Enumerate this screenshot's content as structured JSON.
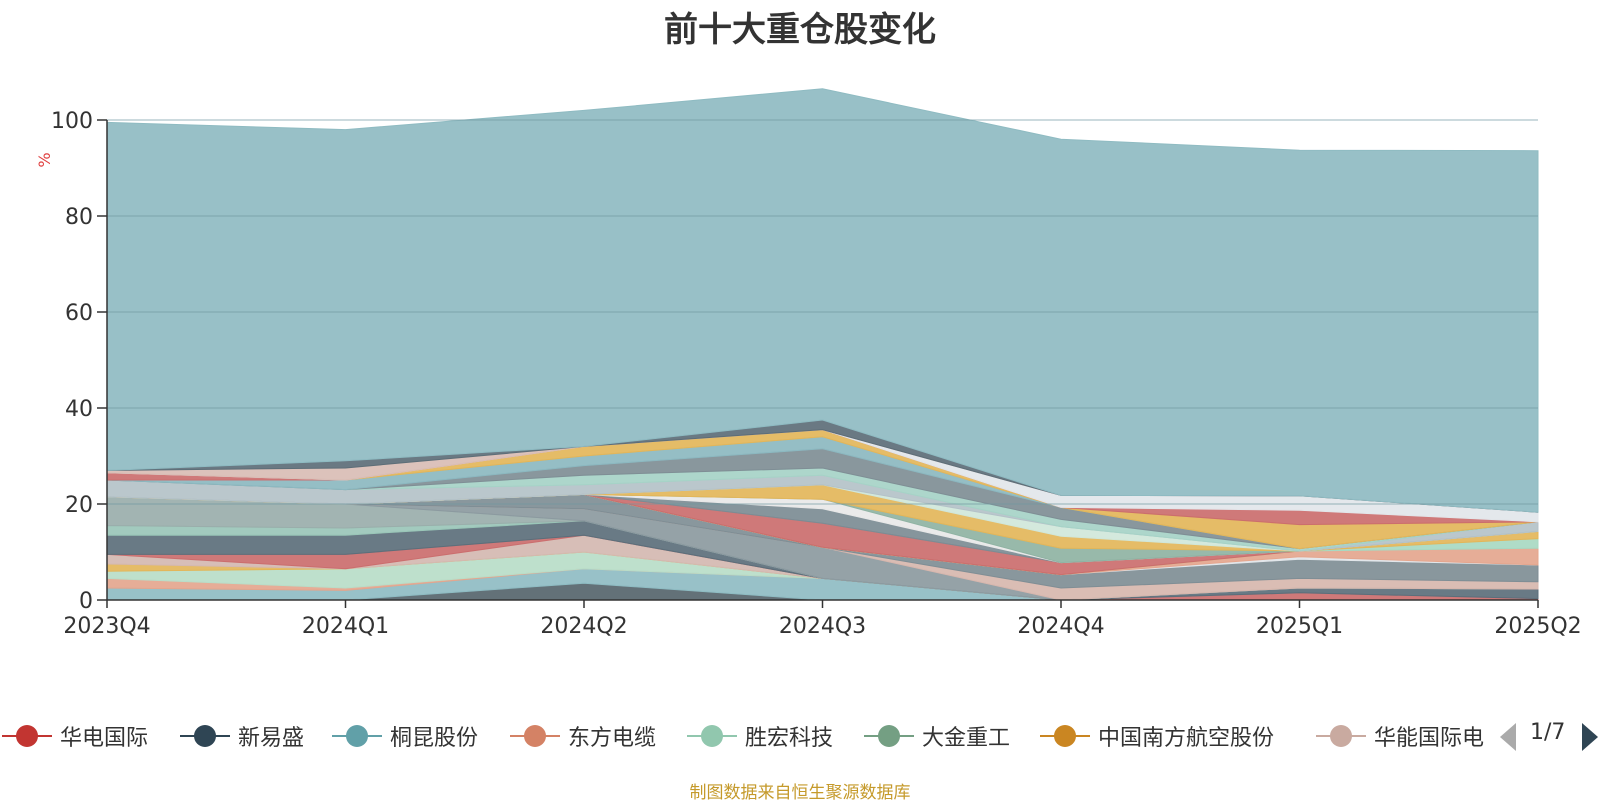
{
  "title": "前十大重仓股变化",
  "source": "制图数据来自恒生聚源数据库",
  "legend_page": "1/7",
  "chart_data": {
    "type": "area",
    "stacked": true,
    "ylabel": "%",
    "ylim": [
      0,
      100
    ],
    "yticks": [
      0,
      20,
      40,
      60,
      80,
      100
    ],
    "x": [
      "2023Q4",
      "2024Q1",
      "2024Q2",
      "2024Q3",
      "2024Q4",
      "2025Q1",
      "2025Q2"
    ],
    "grid": true,
    "legend_position": "bottom",
    "legend": [
      {
        "name": "华电国际",
        "color": "#c23531"
      },
      {
        "name": "新易盛",
        "color": "#2f4554"
      },
      {
        "name": "桐昆股份",
        "color": "#61a0a8"
      },
      {
        "name": "东方电缆",
        "color": "#d48265"
      },
      {
        "name": "胜宏科技",
        "color": "#91c7ae"
      },
      {
        "name": "大金重工",
        "color": "#749f83"
      },
      {
        "name": "中国南方航空股份",
        "color": "#ca8622"
      },
      {
        "name": "华能国际电"
      }
    ],
    "series": [
      {
        "color": "#56656d",
        "values": [
          0,
          0,
          3.5,
          0,
          0,
          0,
          0
        ]
      },
      {
        "color": "#8fbcc3",
        "values": [
          2.5,
          2,
          3,
          4.5,
          0,
          0,
          0
        ]
      },
      {
        "color": "#e4a68e",
        "values": [
          2,
          0.5,
          0,
          0,
          0,
          0,
          0
        ]
      },
      {
        "color": "#b9ddc8",
        "values": [
          1.5,
          4,
          3.5,
          0,
          0,
          0,
          0
        ]
      },
      {
        "color": "#e3b65a",
        "values": [
          1.5,
          0,
          0,
          0,
          0,
          0,
          0
        ]
      },
      {
        "color": "#d4b9b1",
        "values": [
          2,
          0,
          3.5,
          0,
          0,
          0,
          0
        ]
      },
      {
        "color": "#cb6e6e",
        "values": [
          0,
          3,
          0,
          0,
          0,
          1.5,
          0.3
        ]
      },
      {
        "color": "#5c6f7b",
        "values": [
          4,
          4,
          3,
          0,
          0,
          1,
          2
        ]
      },
      {
        "color": "#9ac6b8",
        "values": [
          2,
          1.5,
          0,
          0,
          0,
          0,
          0
        ]
      },
      {
        "color": "#9aaeab",
        "values": [
          6,
          5,
          0,
          0,
          0,
          0,
          0
        ]
      },
      {
        "color": "#8c9aa0",
        "values": [
          0,
          0,
          2.5,
          6.5,
          0,
          0,
          0
        ]
      },
      {
        "color": "#d7b7ae",
        "values": [
          0,
          0,
          0,
          0,
          2.5,
          2,
          1.5
        ]
      },
      {
        "color": "#7f8e95",
        "values": [
          0,
          0,
          3,
          0,
          2.8,
          4,
          3.5
        ]
      },
      {
        "color": "#e2e6ea",
        "values": [
          0,
          0,
          0,
          0,
          0,
          0.5,
          0
        ]
      },
      {
        "color": "#e4a68e",
        "values": [
          0,
          0,
          0,
          0,
          0,
          1.2,
          3.5
        ]
      },
      {
        "color": "#a8d9c2",
        "values": [
          0,
          0,
          0,
          0,
          0,
          0,
          2
        ]
      },
      {
        "color": "#e3b65a",
        "values": [
          0,
          0,
          0,
          0,
          0,
          0,
          1.5
        ]
      },
      {
        "color": "#cb6e6e",
        "values": [
          0,
          0,
          0,
          5,
          2.5,
          0,
          0
        ]
      },
      {
        "color": "#7c8c94",
        "values": [
          0,
          0,
          0,
          3,
          0,
          0,
          0
        ]
      },
      {
        "color": "#e8e8e8",
        "values": [
          0,
          0,
          0,
          2,
          0,
          0,
          0
        ]
      },
      {
        "color": "#8fb3a3",
        "values": [
          0,
          0,
          0,
          0,
          3,
          0,
          0
        ]
      },
      {
        "color": "#e3b65a",
        "values": [
          0,
          0,
          0,
          3,
          2.5,
          0,
          0
        ]
      },
      {
        "color": "#d0e7da",
        "values": [
          0,
          0,
          0,
          0,
          2,
          0,
          0
        ]
      },
      {
        "color": "#b4c2c8",
        "values": [
          3.5,
          3,
          2,
          2,
          0,
          0,
          2
        ]
      },
      {
        "color": "#a6d3c7",
        "values": [
          0,
          0,
          2,
          1.5,
          1.5,
          0.5,
          0
        ]
      },
      {
        "color": "#7f8e95",
        "values": [
          0,
          0,
          2,
          4,
          2.5,
          0,
          0
        ]
      },
      {
        "color": "#8cb8c0",
        "values": [
          0,
          2,
          2,
          2.5,
          0,
          0,
          0
        ]
      },
      {
        "color": "#e3b65a",
        "values": [
          0,
          0,
          2,
          1.5,
          0,
          5,
          0
        ]
      },
      {
        "color": "#cb6e6e",
        "values": [
          1.5,
          0,
          0,
          0,
          0,
          3,
          0
        ]
      },
      {
        "color": "#e2e6ea",
        "values": [
          0,
          0,
          0,
          0,
          2.5,
          3,
          2
        ]
      },
      {
        "color": "#d9bdb5",
        "values": [
          0.5,
          2.5,
          0,
          0,
          0,
          0,
          0
        ]
      },
      {
        "color": "#5d6e78",
        "values": [
          0,
          1.5,
          0,
          2,
          0,
          0,
          0
        ]
      },
      {
        "color": "#8fbbc2",
        "values": [
          72.5,
          69,
          70,
          69,
          74.2,
          72,
          75.3
        ]
      }
    ]
  }
}
